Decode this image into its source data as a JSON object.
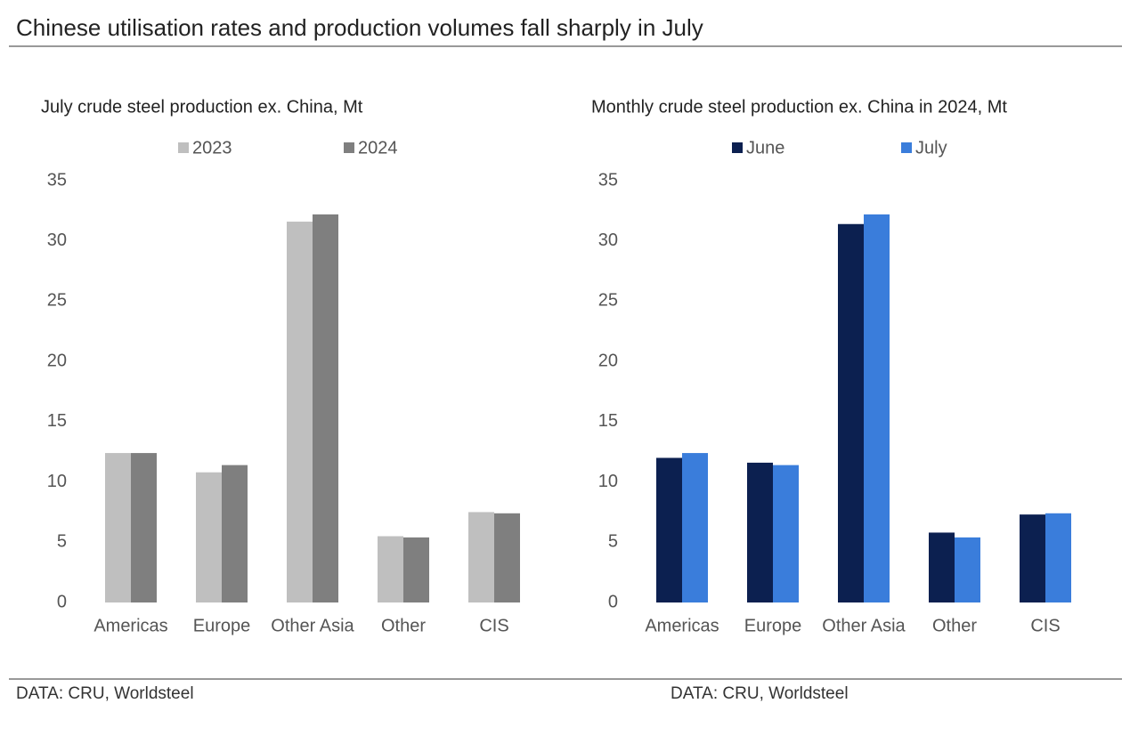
{
  "title": "Chinese utilisation rates and production volumes fall sharply in July",
  "chart_data": [
    {
      "type": "bar",
      "title": "July crude steel production ex. China, Mt",
      "categories": [
        "Americas",
        "Europe",
        "Other Asia",
        "Other",
        "CIS"
      ],
      "series": [
        {
          "name": "2023",
          "color": "#bfbfbf",
          "values": [
            12.4,
            10.8,
            31.6,
            5.5,
            7.5
          ]
        },
        {
          "name": "2024",
          "color": "#7f7f7f",
          "values": [
            12.4,
            11.4,
            32.2,
            5.4,
            7.4
          ]
        }
      ],
      "ylim": [
        0,
        35
      ],
      "yticks": [
        0,
        5,
        10,
        15,
        20,
        25,
        30,
        35
      ],
      "source": "DATA: CRU, Worldsteel"
    },
    {
      "type": "bar",
      "title": "Monthly crude steel production ex. China in 2024, Mt",
      "categories": [
        "Americas",
        "Europe",
        "Other Asia",
        "Other",
        "CIS"
      ],
      "series": [
        {
          "name": "June",
          "color": "#0c2050",
          "values": [
            12.0,
            11.6,
            31.4,
            5.8,
            7.3
          ]
        },
        {
          "name": "July",
          "color": "#3a7ddb",
          "values": [
            12.4,
            11.4,
            32.2,
            5.4,
            7.4
          ]
        }
      ],
      "ylim": [
        0,
        35
      ],
      "yticks": [
        0,
        5,
        10,
        15,
        20,
        25,
        30,
        35
      ],
      "source": "DATA: CRU, Worldsteel"
    }
  ]
}
